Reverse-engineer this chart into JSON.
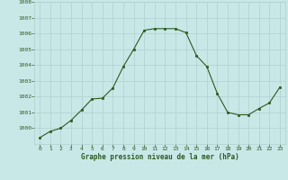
{
  "x": [
    0,
    1,
    2,
    3,
    4,
    5,
    6,
    7,
    8,
    9,
    10,
    11,
    12,
    13,
    14,
    15,
    16,
    17,
    18,
    19,
    20,
    21,
    22,
    23
  ],
  "y": [
    999.4,
    999.8,
    1000.0,
    1000.5,
    1001.15,
    1001.85,
    1001.9,
    1002.55,
    1003.9,
    1005.0,
    1006.2,
    1006.3,
    1006.3,
    1006.3,
    1006.05,
    1004.6,
    1003.9,
    1002.2,
    1001.0,
    1000.85,
    1000.85,
    1001.25,
    1001.6,
    1002.6
  ],
  "ylim": [
    999.0,
    1008.0
  ],
  "xlim": [
    -0.5,
    23.5
  ],
  "yticks": [
    1000,
    1001,
    1002,
    1003,
    1004,
    1005,
    1006,
    1007,
    1008
  ],
  "xticks": [
    0,
    1,
    2,
    3,
    4,
    5,
    6,
    7,
    8,
    9,
    10,
    11,
    12,
    13,
    14,
    15,
    16,
    17,
    18,
    19,
    20,
    21,
    22,
    23
  ],
  "xlabel": "Graphe pression niveau de la mer (hPa)",
  "line_color": "#2d5a1e",
  "marker_color": "#2d5a1e",
  "bg_color": "#c8e8e8",
  "grid_color": "#b0d0d0",
  "label_color": "#2d5a1e",
  "xlabel_bg": "#3a7a28"
}
